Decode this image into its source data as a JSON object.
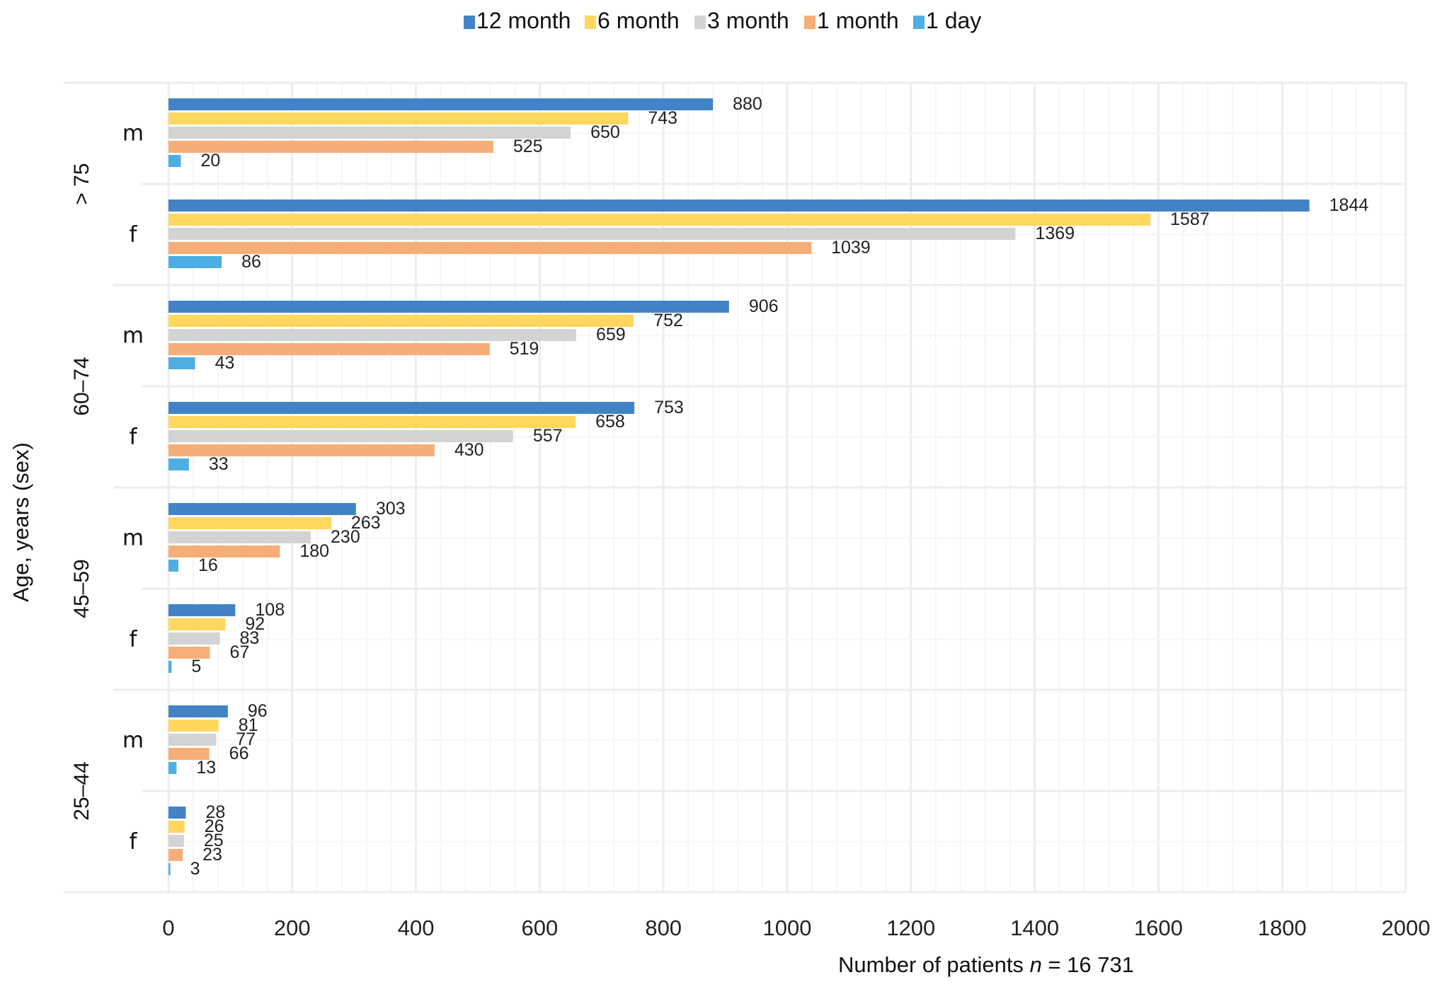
{
  "chart_data": {
    "type": "bar",
    "orientation": "horizontal",
    "title": "",
    "xlabel": "Number of patients",
    "xlabel_italic": "n",
    "xlabel_suffix": " = 16 731",
    "ylabel": "Age, years (sex)",
    "xlim": [
      0,
      2000
    ],
    "xticks": [
      0,
      200,
      400,
      600,
      800,
      1000,
      1200,
      1400,
      1600,
      1800,
      2000
    ],
    "grid": true,
    "legend_position": "top-center",
    "series": [
      {
        "name": "12 month",
        "color": "#4283C6",
        "values": [
          880,
          1844,
          906,
          753,
          303,
          108,
          96,
          28
        ]
      },
      {
        "name": "6 month",
        "color": "#FFD75F",
        "values": [
          743,
          1587,
          752,
          658,
          263,
          92,
          81,
          26
        ]
      },
      {
        "name": "3 month",
        "color": "#D3D3D3",
        "values": [
          650,
          1369,
          659,
          557,
          230,
          83,
          77,
          25
        ]
      },
      {
        "name": "1 month",
        "color": "#F6AE78",
        "values": [
          525,
          1039,
          519,
          430,
          180,
          67,
          66,
          23
        ]
      },
      {
        "name": "1 day",
        "color": "#4DAEE3",
        "values": [
          20,
          86,
          43,
          33,
          16,
          5,
          13,
          3
        ]
      }
    ],
    "categories": [
      {
        "group": "> 75",
        "sex": "m"
      },
      {
        "group": "> 75",
        "sex": "f"
      },
      {
        "group": "60–74",
        "sex": "m"
      },
      {
        "group": "60–74",
        "sex": "f"
      },
      {
        "group": "45–59",
        "sex": "m"
      },
      {
        "group": "45–59",
        "sex": "f"
      },
      {
        "group": "25–44",
        "sex": "m"
      },
      {
        "group": "25–44",
        "sex": "f"
      }
    ],
    "groups": [
      "> 75",
      "60–74",
      "45–59",
      "25–44"
    ]
  }
}
